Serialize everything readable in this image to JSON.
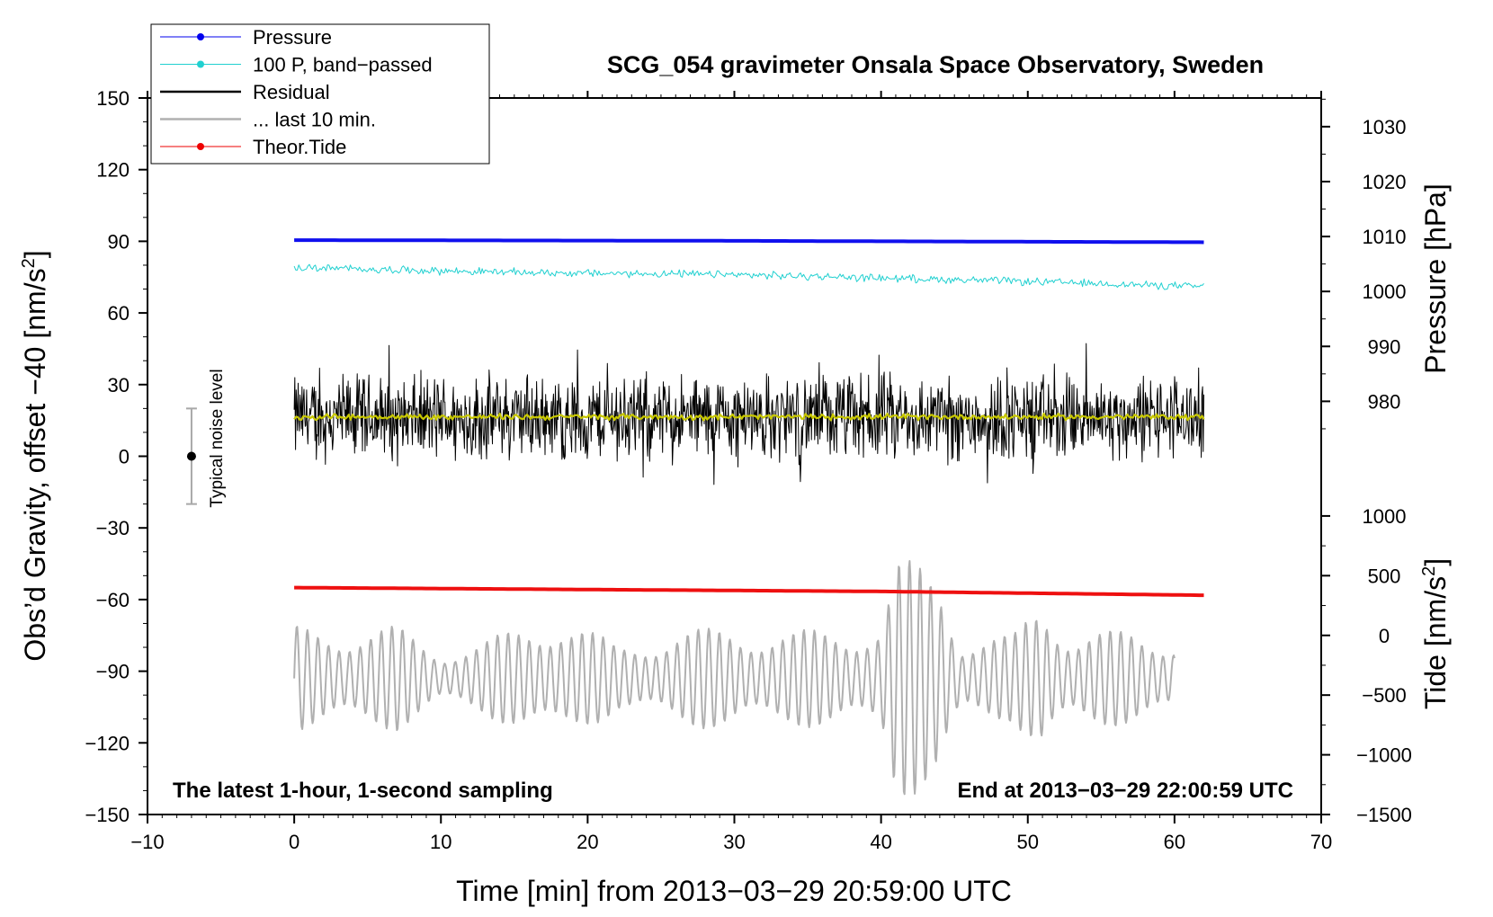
{
  "chart_data": {
    "type": "line",
    "title": "SCG_054 gravimeter Onsala Space Observatory, Sweden",
    "xlabel": "Time [min] from 2013−03−29 20:59:00 UTC",
    "ylabel_left": "Obs’d Gravity, offset −40 [nm/s",
    "ylabel_left_sup": "2",
    "ylabel_left_end": "]",
    "ylabel_right_pressure": "Pressure [hPa]",
    "ylabel_right_tide": "Tide [nm/s",
    "ylabel_right_tide_sup": "2",
    "ylabel_right_tide_end": "]",
    "xlim": [
      -10,
      70
    ],
    "ylim_left": [
      -150,
      150
    ],
    "xticks": [
      -10,
      0,
      10,
      20,
      30,
      40,
      50,
      60,
      70
    ],
    "xtick_labels": [
      "−10",
      "0",
      "10",
      "20",
      "30",
      "40",
      "50",
      "60",
      "70"
    ],
    "yticks_left": [
      150,
      120,
      90,
      60,
      30,
      0,
      -30,
      -60,
      -90,
      -120,
      -150
    ],
    "ytick_labels_left": [
      "150",
      "120",
      "90",
      "60",
      "30",
      "0",
      "−30",
      "−60",
      "−90",
      "−120",
      "−150"
    ],
    "pressure_ticks": [
      1030,
      1020,
      1010,
      1000,
      990,
      980
    ],
    "pressure_tick_labels": [
      "1030",
      "1020",
      "1010",
      "1000",
      "990",
      "980"
    ],
    "pressure_to_left_axis": {
      "p_ref": 1000,
      "y_ref": 69,
      "scale": 2.3
    },
    "tide_ticks": [
      1000,
      500,
      0,
      -500,
      -1000,
      -1500
    ],
    "tide_tick_labels": [
      "1000",
      "500",
      "0",
      "−500",
      "−1000",
      "−1500"
    ],
    "tide_to_left_axis": {
      "t_ref": 0,
      "y_ref": -75,
      "scale": 0.05
    },
    "note_left": "The latest 1-hour, 1-second sampling",
    "note_right": "End at 2013−03−29 22:00:59 UTC",
    "noise_level": {
      "label": "Typical noise level",
      "x": -7,
      "center": 0,
      "half_range": 20
    },
    "legend": [
      {
        "label": "Pressure",
        "color": "#0000ee",
        "marker": true
      },
      {
        "label": "100 P, band−passed",
        "color": "#20d0d0",
        "marker": true
      },
      {
        "label": "Residual",
        "color": "#000000",
        "marker": false
      },
      {
        "label": "... last 10 min.",
        "color": "#b0b0b0",
        "marker": false
      },
      {
        "label": "Theor.Tide",
        "color": "#ee0000",
        "marker": true
      }
    ],
    "series": [
      {
        "name": "Pressure",
        "color": "#1010ee",
        "axis": "left",
        "kind": "line",
        "x": [
          0,
          30,
          62
        ],
        "values": [
          90.5,
          90.2,
          89.6
        ]
      },
      {
        "name": "100 P, band-passed",
        "color": "#20d0d0",
        "axis": "left",
        "kind": "noisy",
        "x": [
          0,
          15,
          30,
          45,
          62
        ],
        "values": [
          79,
          77,
          76,
          74,
          71
        ],
        "amplitude": 2
      },
      {
        "name": "Residual",
        "color": "#000000",
        "axis": "left",
        "kind": "noisy",
        "x": [
          0,
          62
        ],
        "values": [
          16,
          16
        ],
        "amplitude": 22
      },
      {
        "name": "Residual smoothed",
        "color": "#c8c800",
        "axis": "left",
        "kind": "noisy",
        "x": [
          0,
          62
        ],
        "values": [
          16.5,
          16.5
        ],
        "amplitude": 1.5
      },
      {
        "name": "Theor.Tide",
        "color": "#ee1010",
        "axis": "left",
        "kind": "line",
        "x": [
          0,
          20,
          40,
          62
        ],
        "values": [
          -55,
          -55.8,
          -56.6,
          -58.2
        ]
      },
      {
        "name": "... last 10 min.",
        "color": "#b0b0b0",
        "axis": "left",
        "kind": "oscillation",
        "x": [
          0,
          60
        ],
        "center": -93,
        "amplitudes": [
          {
            "x": 0,
            "a": 22
          },
          {
            "x": 7,
            "a": 22
          },
          {
            "x": 10,
            "a": 12
          },
          {
            "x": 13,
            "a": 16
          },
          {
            "x": 18,
            "a": 28
          },
          {
            "x": 22,
            "a": 14
          },
          {
            "x": 26,
            "a": 20
          },
          {
            "x": 30,
            "a": 22
          },
          {
            "x": 34,
            "a": 20
          },
          {
            "x": 38,
            "a": 22
          },
          {
            "x": 40,
            "a": 24
          },
          {
            "x": 41,
            "a": 50
          },
          {
            "x": 44,
            "a": 48
          },
          {
            "x": 45.5,
            "a": 18
          },
          {
            "x": 49,
            "a": 18
          },
          {
            "x": 51,
            "a": 36
          },
          {
            "x": 53,
            "a": 20
          },
          {
            "x": 57,
            "a": 20
          },
          {
            "x": 60,
            "a": 18
          }
        ]
      }
    ]
  }
}
